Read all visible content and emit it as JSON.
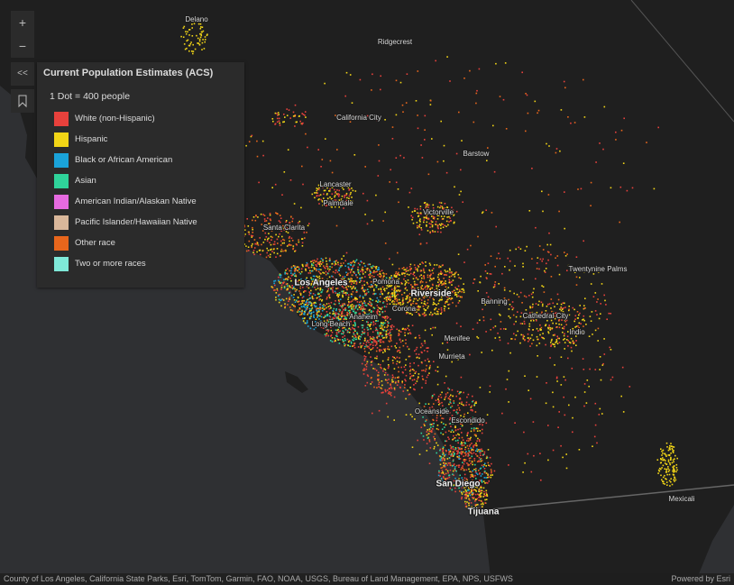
{
  "controls": {
    "zoom_in": "+",
    "zoom_out": "−",
    "collapse": "<<"
  },
  "legend": {
    "title": "Current Population Estimates (ACS)",
    "ratio": "1 Dot = 400 people",
    "items": [
      {
        "label": "White (non-Hispanic)",
        "color": "#e8413c"
      },
      {
        "label": "Hispanic",
        "color": "#f2d516"
      },
      {
        "label": "Black or African American",
        "color": "#1aa3d9"
      },
      {
        "label": "Asian",
        "color": "#2fd39a"
      },
      {
        "label": "American Indian/Alaskan Native",
        "color": "#e66ae0"
      },
      {
        "label": "Pacific Islander/Hawaiian Native",
        "color": "#d9b79a"
      },
      {
        "label": "Other race",
        "color": "#e8661c"
      },
      {
        "label": "Two or more races",
        "color": "#7fe8d8"
      }
    ]
  },
  "places": [
    "Delano",
    "Ridgecrest",
    "California City",
    "Barstow",
    "Lancaster",
    "Palmdale",
    "Victorville",
    "Santa Clarita",
    "Los Angeles",
    "Pomona",
    "Riverside",
    "Banning",
    "Twentynine Palms",
    "Anaheim",
    "Corona",
    "Long Beach",
    "Cathedral City",
    "Indio",
    "Menifee",
    "Murrieta",
    "Oceanside",
    "Escondido",
    "San Diego",
    "Tijuana",
    "Mexicali"
  ],
  "attribution": "County of Los Angeles, California State Parks, Esri, TomTom, Garmin, FAO, NOAA, USGS, Bureau of Land Management, EPA, NPS, USFWS",
  "powered_by": "Powered by Esri"
}
